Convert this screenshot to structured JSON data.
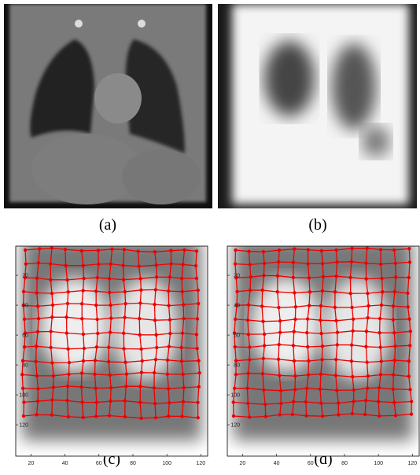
{
  "panels": [
    {
      "caption": "(a)"
    },
    {
      "caption": "(b)"
    },
    {
      "caption": "(c)",
      "xlim": [
        11,
        124
      ],
      "ylim": [
        0.5,
        141
      ],
      "xticks": [
        20,
        40,
        60,
        80,
        100,
        120
      ],
      "yticks": [
        20,
        40,
        60,
        80,
        100,
        120
      ]
    },
    {
      "caption": "(d)",
      "xlim": [
        11,
        124
      ],
      "ylim": [
        0.5,
        141
      ],
      "xticks": [
        20,
        40,
        60,
        80,
        100,
        120
      ],
      "yticks": [
        20,
        40,
        60,
        80,
        100,
        120
      ]
    }
  ]
}
